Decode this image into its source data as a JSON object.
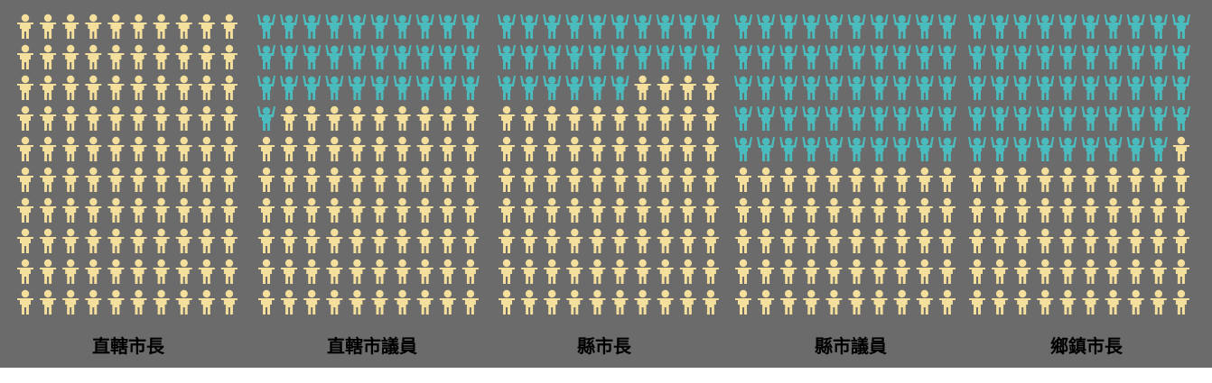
{
  "chart_data": {
    "type": "pictogram",
    "title": "",
    "grid_columns": 10,
    "total_icons_per_panel": 100,
    "colors": {
      "background": "#6b6b6b",
      "highlighted": "#4bbcbe",
      "other": "#f4e09c"
    },
    "panels": [
      {
        "label": "直轄市長",
        "highlighted": 0
      },
      {
        "label": "直轄市議員",
        "highlighted": 31
      },
      {
        "label": "縣市長",
        "highlighted": 26
      },
      {
        "label": "縣市議員",
        "highlighted": 50
      },
      {
        "label": "鄉鎮市長",
        "highlighted": 49
      }
    ]
  }
}
